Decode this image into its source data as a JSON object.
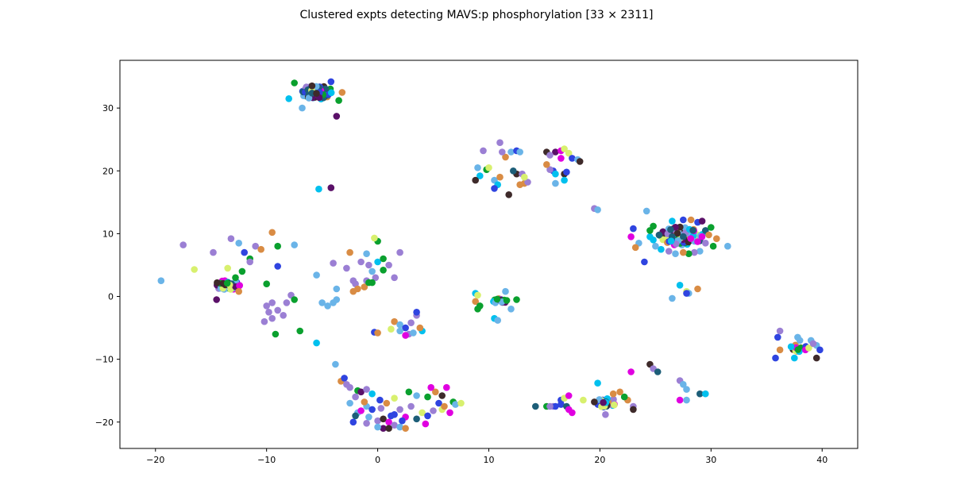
{
  "chart_data": {
    "type": "scatter",
    "title": "Clustered expts detecting MAVS:p phosphorylation [33 × 2311]",
    "xlabel": "",
    "ylabel": "",
    "xlim": [
      -23.2,
      43.2
    ],
    "ylim": [
      -24.2,
      37.6
    ],
    "xticks": [
      -20,
      -10,
      0,
      10,
      20,
      30,
      40
    ],
    "yticks": [
      -20,
      -10,
      0,
      10,
      20,
      30
    ],
    "xtick_labels": [
      "−20",
      "−10",
      "0",
      "10",
      "20",
      "30",
      "40"
    ],
    "ytick_labels": [
      "−20",
      "−10",
      "0",
      "10",
      "20",
      "30"
    ],
    "grid": false,
    "legend": "none",
    "marker_colors": [
      "#0aa02e",
      "#d98c44",
      "#9b7fd4",
      "#6ab4e8",
      "#2f44e0",
      "#00c0ee",
      "#5a1068",
      "#3e2a2a",
      "#e000e0",
      "#d8f06e",
      "#1d5e78"
    ],
    "clusters": [
      {
        "cx": -5.5,
        "cy": 32.5,
        "n": 80,
        "rx": 1.5,
        "ry": 1.1
      },
      {
        "cx": -13.5,
        "cy": 1.8,
        "n": 40,
        "rx": 1.2,
        "ry": 0.8
      },
      {
        "cx": 27.3,
        "cy": 9.6,
        "n": 90,
        "rx": 2.0,
        "ry": 1.5
      },
      {
        "cx": 20.5,
        "cy": -16.9,
        "n": 25,
        "rx": 1.0,
        "ry": 0.8
      },
      {
        "cx": 11.0,
        "cy": -0.8,
        "n": 15,
        "rx": 0.7,
        "ry": 0.5
      },
      {
        "cx": 38.0,
        "cy": -8.2,
        "n": 15,
        "rx": 0.8,
        "ry": 0.6
      }
    ],
    "points": [
      [
        -7.5,
        34.0,
        0
      ],
      [
        -4.2,
        34.2,
        4
      ],
      [
        -3.2,
        32.5,
        1
      ],
      [
        -3.5,
        31.2,
        0
      ],
      [
        -8.0,
        31.5,
        5
      ],
      [
        -6.8,
        30.0,
        3
      ],
      [
        -3.7,
        28.7,
        6
      ],
      [
        -5.3,
        17.1,
        5
      ],
      [
        -4.2,
        17.3,
        6
      ],
      [
        -17.5,
        8.2,
        2
      ],
      [
        -14.8,
        7.0,
        2
      ],
      [
        -13.2,
        9.2,
        2
      ],
      [
        -12.5,
        8.5,
        3
      ],
      [
        -12.0,
        7.0,
        4
      ],
      [
        -11.0,
        8.0,
        2
      ],
      [
        -10.5,
        7.5,
        1
      ],
      [
        -9.5,
        10.2,
        1
      ],
      [
        -9.0,
        8.0,
        0
      ],
      [
        -7.5,
        8.2,
        3
      ],
      [
        -11.5,
        6.0,
        0
      ],
      [
        -12.2,
        4.0,
        0
      ],
      [
        -13.5,
        4.5,
        9
      ],
      [
        -11.5,
        5.5,
        2
      ],
      [
        -9.0,
        4.8,
        4
      ],
      [
        -16.5,
        4.3,
        9
      ],
      [
        -19.5,
        2.5,
        3
      ],
      [
        -12.8,
        3.0,
        0
      ],
      [
        -10.0,
        2.0,
        0
      ],
      [
        -14.5,
        -0.5,
        6
      ],
      [
        -12.5,
        0.8,
        1
      ],
      [
        -9.5,
        -1.0,
        2
      ],
      [
        -10.0,
        -1.5,
        2
      ],
      [
        -9.0,
        -2.2,
        2
      ],
      [
        -7.8,
        0.2,
        2
      ],
      [
        -8.2,
        -1.0,
        2
      ],
      [
        -7.5,
        -0.5,
        0
      ],
      [
        -9.8,
        -2.5,
        2
      ],
      [
        -8.5,
        -3.0,
        2
      ],
      [
        -10.2,
        -4.0,
        2
      ],
      [
        -9.5,
        -3.5,
        2
      ],
      [
        -9.2,
        -6.0,
        0
      ],
      [
        -7.0,
        -5.5,
        0
      ],
      [
        -5.5,
        3.4,
        3
      ],
      [
        -4.0,
        5.3,
        2
      ],
      [
        -2.5,
        7.0,
        1
      ],
      [
        -2.0,
        2.0,
        2
      ],
      [
        -1.5,
        5.5,
        2
      ],
      [
        -1.0,
        2.5,
        2
      ],
      [
        -0.8,
        5.0,
        2
      ],
      [
        -0.5,
        4.0,
        3
      ],
      [
        -0.2,
        3.0,
        2
      ],
      [
        -1.2,
        1.5,
        1
      ],
      [
        -0.8,
        2.2,
        0
      ],
      [
        -1.8,
        1.2,
        1
      ],
      [
        -2.2,
        0.8,
        1
      ],
      [
        0.0,
        5.5,
        5
      ],
      [
        0.5,
        6.0,
        0
      ],
      [
        1.0,
        5.0,
        2
      ],
      [
        1.5,
        3.0,
        2
      ],
      [
        2.0,
        7.0,
        2
      ],
      [
        0.0,
        8.8,
        0
      ],
      [
        -0.3,
        9.3,
        9
      ],
      [
        0.5,
        4.2,
        0
      ],
      [
        -1.0,
        6.8,
        3
      ],
      [
        -0.5,
        2.2,
        0
      ],
      [
        -2.2,
        2.5,
        2
      ],
      [
        -2.8,
        4.5,
        2
      ],
      [
        -5.0,
        -1.0,
        3
      ],
      [
        -4.5,
        -1.5,
        3
      ],
      [
        -4.0,
        -1.0,
        3
      ],
      [
        -3.7,
        -0.5,
        3
      ],
      [
        -3.7,
        1.2,
        3
      ],
      [
        -5.5,
        -7.4,
        5
      ],
      [
        -3.8,
        -10.8,
        3
      ],
      [
        -3.3,
        -13.5,
        1
      ],
      [
        -3.0,
        -13.0,
        4
      ],
      [
        -2.8,
        -14.0,
        2
      ],
      [
        -2.5,
        -14.5,
        2
      ],
      [
        -1.8,
        -15.0,
        0
      ],
      [
        -1.5,
        -15.2,
        6
      ],
      [
        -1.0,
        -14.8,
        2
      ],
      [
        -0.5,
        -15.5,
        5
      ],
      [
        0.2,
        -16.5,
        4
      ],
      [
        -1.0,
        -17.5,
        3
      ],
      [
        -0.5,
        -18.0,
        4
      ],
      [
        -1.8,
        -18.5,
        3
      ],
      [
        -2.0,
        -19.0,
        10
      ],
      [
        -2.2,
        -20.0,
        4
      ],
      [
        -1.0,
        -20.2,
        2
      ],
      [
        0.0,
        -19.8,
        2
      ],
      [
        0.5,
        -19.5,
        7
      ],
      [
        1.0,
        -20.0,
        8
      ],
      [
        1.2,
        -19.0,
        4
      ],
      [
        1.5,
        -20.5,
        2
      ],
      [
        2.0,
        -20.8,
        3
      ],
      [
        2.5,
        -21.0,
        1
      ],
      [
        0.5,
        -21.0,
        6
      ],
      [
        1.0,
        -21.0,
        7
      ],
      [
        0.0,
        -20.8,
        3
      ],
      [
        -0.8,
        -19.2,
        3
      ],
      [
        -1.5,
        -18.2,
        8
      ],
      [
        0.8,
        -17.0,
        1
      ],
      [
        1.5,
        -16.2,
        9
      ],
      [
        2.0,
        -18.0,
        2
      ],
      [
        2.5,
        -19.2,
        8
      ],
      [
        3.0,
        -17.5,
        2
      ],
      [
        3.5,
        -19.5,
        10
      ],
      [
        4.0,
        -18.5,
        9
      ],
      [
        4.5,
        -19.0,
        4
      ],
      [
        4.3,
        -20.3,
        8
      ],
      [
        5.0,
        -18.2,
        2
      ],
      [
        5.2,
        -15.2,
        1
      ],
      [
        5.5,
        -17.0,
        4
      ],
      [
        5.8,
        -18.0,
        9
      ],
      [
        6.0,
        -17.5,
        1
      ],
      [
        6.5,
        -18.5,
        8
      ],
      [
        6.8,
        -16.8,
        0
      ],
      [
        7.0,
        -17.2,
        3
      ],
      [
        7.5,
        -17.0,
        9
      ],
      [
        2.8,
        -15.2,
        0
      ],
      [
        3.5,
        -15.8,
        3
      ],
      [
        4.8,
        -14.5,
        8
      ],
      [
        6.2,
        -14.5,
        8
      ],
      [
        4.5,
        -16.0,
        0
      ],
      [
        5.8,
        -15.8,
        7
      ],
      [
        1.5,
        -18.8,
        4
      ],
      [
        2.2,
        -19.8,
        4
      ],
      [
        0.3,
        -17.8,
        2
      ],
      [
        -1.2,
        -16.8,
        1
      ],
      [
        -2.0,
        -16.0,
        2
      ],
      [
        -2.5,
        -17.0,
        3
      ],
      [
        -0.3,
        -5.7,
        4
      ],
      [
        0.0,
        -5.8,
        1
      ],
      [
        1.5,
        -4.0,
        1
      ],
      [
        2.0,
        -4.5,
        3
      ],
      [
        2.5,
        -5.0,
        4
      ],
      [
        3.0,
        -4.2,
        2
      ],
      [
        3.5,
        -3.0,
        2
      ],
      [
        3.5,
        -2.5,
        4
      ],
      [
        2.0,
        -5.5,
        3
      ],
      [
        2.8,
        -6.0,
        2
      ],
      [
        3.2,
        -5.8,
        3
      ],
      [
        4.0,
        -5.5,
        5
      ],
      [
        2.5,
        -6.2,
        8
      ],
      [
        3.8,
        -5.0,
        1
      ],
      [
        1.2,
        -5.2,
        9
      ],
      [
        9.0,
        20.5,
        3
      ],
      [
        9.5,
        23.2,
        2
      ],
      [
        9.8,
        20.2,
        0
      ],
      [
        10.0,
        20.5,
        9
      ],
      [
        9.2,
        19.2,
        5
      ],
      [
        8.8,
        18.5,
        7
      ],
      [
        10.5,
        18.5,
        3
      ],
      [
        11.0,
        19.0,
        1
      ],
      [
        10.8,
        17.8,
        5
      ],
      [
        10.5,
        17.2,
        4
      ],
      [
        11.5,
        22.2,
        1
      ],
      [
        11.0,
        24.5,
        2
      ],
      [
        11.2,
        23.0,
        2
      ],
      [
        12.0,
        23.0,
        3
      ],
      [
        12.5,
        23.2,
        4
      ],
      [
        12.8,
        23.0,
        3
      ],
      [
        12.5,
        19.5,
        7
      ],
      [
        13.0,
        19.5,
        2
      ],
      [
        13.2,
        18.0,
        1
      ],
      [
        12.8,
        17.8,
        1
      ],
      [
        13.5,
        18.2,
        2
      ],
      [
        11.8,
        16.2,
        7
      ],
      [
        13.2,
        19.0,
        9
      ],
      [
        12.2,
        20.0,
        10
      ],
      [
        15.2,
        23.0,
        7
      ],
      [
        16.0,
        23.0,
        6
      ],
      [
        16.5,
        23.2,
        8
      ],
      [
        16.8,
        23.5,
        9
      ],
      [
        17.2,
        22.8,
        9
      ],
      [
        17.5,
        22.0,
        4
      ],
      [
        18.0,
        21.8,
        3
      ],
      [
        18.2,
        21.5,
        7
      ],
      [
        15.8,
        20.0,
        4
      ],
      [
        16.0,
        19.5,
        5
      ],
      [
        15.5,
        20.2,
        2
      ],
      [
        16.8,
        19.5,
        7
      ],
      [
        17.0,
        19.8,
        4
      ],
      [
        16.8,
        18.5,
        5
      ],
      [
        16.0,
        18.0,
        3
      ],
      [
        15.5,
        22.5,
        2
      ],
      [
        15.2,
        21.0,
        1
      ],
      [
        16.5,
        22.0,
        8
      ],
      [
        8.8,
        0.5,
        5
      ],
      [
        8.8,
        -0.8,
        1
      ],
      [
        9.2,
        -1.5,
        0
      ],
      [
        9.0,
        -2.0,
        0
      ],
      [
        10.5,
        -3.5,
        5
      ],
      [
        10.8,
        -3.8,
        3
      ],
      [
        11.5,
        0.8,
        3
      ],
      [
        12.5,
        -0.5,
        0
      ],
      [
        12.0,
        -2.0,
        3
      ],
      [
        9.0,
        0.2,
        9
      ],
      [
        19.5,
        14.0,
        2
      ],
      [
        19.8,
        13.8,
        3
      ],
      [
        24.2,
        13.6,
        3
      ],
      [
        23.0,
        10.8,
        4
      ],
      [
        22.8,
        9.5,
        8
      ],
      [
        23.5,
        8.5,
        3
      ],
      [
        23.2,
        7.8,
        1
      ],
      [
        24.0,
        5.5,
        4
      ],
      [
        24.5,
        9.5,
        5
      ],
      [
        24.8,
        11.2,
        0
      ],
      [
        24.5,
        10.5,
        0
      ],
      [
        26.5,
        12.0,
        5
      ],
      [
        27.5,
        12.2,
        4
      ],
      [
        28.2,
        12.2,
        1
      ],
      [
        28.8,
        11.8,
        4
      ],
      [
        29.2,
        12.0,
        6
      ],
      [
        29.5,
        10.5,
        10
      ],
      [
        30.0,
        11.0,
        0
      ],
      [
        29.8,
        9.8,
        1
      ],
      [
        29.5,
        8.5,
        2
      ],
      [
        30.2,
        8.0,
        0
      ],
      [
        29.0,
        7.2,
        3
      ],
      [
        28.5,
        7.0,
        2
      ],
      [
        28.0,
        6.8,
        0
      ],
      [
        27.5,
        7.0,
        1
      ],
      [
        26.8,
        6.8,
        3
      ],
      [
        26.2,
        7.2,
        2
      ],
      [
        25.5,
        7.5,
        5
      ],
      [
        25.0,
        8.0,
        3
      ],
      [
        24.8,
        9.0,
        5
      ],
      [
        31.5,
        8.0,
        3
      ],
      [
        30.5,
        9.2,
        1
      ],
      [
        27.2,
        1.8,
        5
      ],
      [
        27.8,
        0.8,
        9
      ],
      [
        28.0,
        0.5,
        3
      ],
      [
        28.8,
        1.2,
        1
      ],
      [
        26.5,
        -0.3,
        3
      ],
      [
        27.8,
        0.5,
        4
      ],
      [
        24.5,
        -10.8,
        7
      ],
      [
        24.8,
        -11.5,
        2
      ],
      [
        25.2,
        -12.0,
        10
      ],
      [
        22.8,
        -12.0,
        8
      ],
      [
        23.0,
        -17.5,
        2
      ],
      [
        22.5,
        -16.5,
        1
      ],
      [
        22.2,
        -16.0,
        0
      ],
      [
        21.8,
        -15.2,
        1
      ],
      [
        23.0,
        -18.0,
        7
      ],
      [
        19.8,
        -13.8,
        5
      ],
      [
        20.5,
        -18.8,
        2
      ],
      [
        27.2,
        -13.4,
        2
      ],
      [
        27.5,
        -14.0,
        3
      ],
      [
        27.8,
        -14.8,
        3
      ],
      [
        27.2,
        -16.5,
        8
      ],
      [
        27.8,
        -16.5,
        3
      ],
      [
        29.0,
        -15.5,
        10
      ],
      [
        29.5,
        -15.5,
        5
      ],
      [
        15.2,
        -17.5,
        0
      ],
      [
        15.8,
        -17.5,
        2
      ],
      [
        16.0,
        -17.5,
        4
      ],
      [
        16.5,
        -17.2,
        4
      ],
      [
        16.5,
        -16.5,
        4
      ],
      [
        16.8,
        -16.2,
        9
      ],
      [
        17.0,
        -17.5,
        10
      ],
      [
        17.2,
        -18.0,
        8
      ],
      [
        17.5,
        -18.5,
        8
      ],
      [
        17.2,
        -15.8,
        8
      ],
      [
        18.5,
        -16.5,
        9
      ],
      [
        14.2,
        -17.5,
        10
      ],
      [
        19.5,
        -16.8,
        7
      ],
      [
        21.2,
        -15.5,
        1
      ],
      [
        15.5,
        -17.5,
        2
      ],
      [
        36.2,
        -5.5,
        2
      ],
      [
        36.0,
        -6.5,
        4
      ],
      [
        36.2,
        -8.5,
        1
      ],
      [
        35.8,
        -9.8,
        4
      ],
      [
        37.8,
        -6.5,
        3
      ],
      [
        38.0,
        -7.0,
        3
      ],
      [
        39.0,
        -7.0,
        3
      ],
      [
        39.5,
        -7.8,
        3
      ],
      [
        39.8,
        -8.5,
        4
      ],
      [
        39.5,
        -9.8,
        7
      ],
      [
        37.5,
        -9.8,
        5
      ],
      [
        38.5,
        -8.5,
        8
      ],
      [
        37.2,
        -8.0,
        5
      ],
      [
        38.8,
        -8.2,
        9
      ],
      [
        39.2,
        -7.5,
        2
      ]
    ]
  }
}
